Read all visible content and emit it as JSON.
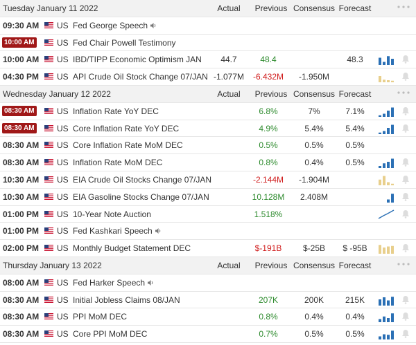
{
  "colors": {
    "up_bar": "#2b70b5",
    "down_bar": "#e8cf8c",
    "badge": "#a01818",
    "positive": "#2e8b2e",
    "negative": "#d01c1c",
    "bell": "#dddddd"
  },
  "columns": {
    "actual": "Actual",
    "previous": "Previous",
    "consensus": "Consensus",
    "forecast": "Forecast"
  },
  "days": [
    {
      "date": "Tuesday January 11 2022",
      "events": [
        {
          "time": "09:30 AM",
          "country": "US",
          "name": "Fed George Speech",
          "speech": true
        },
        {
          "time": "10:00 AM",
          "badge": true,
          "country": "US",
          "name": "Fed Chair Powell Testimony"
        },
        {
          "time": "10:00 AM",
          "country": "US",
          "name": "IBD/TIPP Economic Optimism JAN",
          "actual": "44.7",
          "previous": "48.4",
          "previous_color": "green",
          "forecast": "48.3",
          "chart": "up",
          "bars": [
            0.7,
            0.3,
            0.85,
            0.6
          ]
        },
        {
          "time": "04:30 PM",
          "country": "US",
          "name": "API Crude Oil Stock Change 07/JAN",
          "actual": "-1.077M",
          "previous": "-6.432M",
          "previous_color": "red",
          "consensus": "-1.950M",
          "chart": "down",
          "bars": [
            0.6,
            0.25,
            0.2,
            0.15
          ]
        }
      ]
    },
    {
      "date": "Wednesday January 12 2022",
      "events": [
        {
          "time": "08:30 AM",
          "badge": true,
          "country": "US",
          "name": "Inflation Rate YoY DEC",
          "previous": "6.8%",
          "previous_color": "green",
          "consensus": "7%",
          "forecast": "7.1%",
          "chart": "up",
          "bars": [
            0.15,
            0.3,
            0.6,
            0.9
          ]
        },
        {
          "time": "08:30 AM",
          "badge": true,
          "country": "US",
          "name": "Core Inflation Rate YoY DEC",
          "previous": "4.9%",
          "previous_color": "green",
          "consensus": "5.4%",
          "forecast": "5.4%",
          "chart": "up",
          "bars": [
            0.15,
            0.3,
            0.6,
            0.9
          ]
        },
        {
          "time": "08:30 AM",
          "country": "US",
          "name": "Core Inflation Rate MoM DEC",
          "previous": "0.5%",
          "previous_color": "green",
          "consensus": "0.5%",
          "forecast": "0.5%"
        },
        {
          "time": "08:30 AM",
          "country": "US",
          "name": "Inflation Rate MoM DEC",
          "previous": "0.8%",
          "previous_color": "green",
          "consensus": "0.4%",
          "forecast": "0.5%",
          "chart": "up",
          "bars": [
            0.2,
            0.45,
            0.6,
            0.9
          ]
        },
        {
          "time": "10:30 AM",
          "country": "US",
          "name": "EIA Crude Oil Stocks Change 07/JAN",
          "previous": "-2.144M",
          "previous_color": "red",
          "consensus": "-1.904M",
          "chart": "down",
          "bars": [
            0.55,
            0.9,
            0.3,
            0.15
          ]
        },
        {
          "time": "10:30 AM",
          "country": "US",
          "name": "EIA Gasoline Stocks Change 07/JAN",
          "previous": "10.128M",
          "previous_color": "green",
          "consensus": "2.408M",
          "chart": "up",
          "bars": [
            0,
            0,
            0.3,
            0.85
          ]
        },
        {
          "time": "01:00 PM",
          "country": "US",
          "name": "10-Year Note Auction",
          "previous": "1.518%",
          "previous_color": "green",
          "chart": "line"
        },
        {
          "time": "01:00 PM",
          "country": "US",
          "name": "Fed Kashkari Speech",
          "speech": true
        },
        {
          "time": "02:00 PM",
          "country": "US",
          "name": "Monthly Budget Statement DEC",
          "previous": "$-191B",
          "previous_color": "red",
          "consensus": "$-25B",
          "forecast": "$ -95B",
          "chart": "down",
          "bars": [
            0.85,
            0.6,
            0.7,
            0.75
          ]
        }
      ]
    },
    {
      "date": "Thursday January 13 2022",
      "events": [
        {
          "time": "08:00 AM",
          "country": "US",
          "name": "Fed Harker Speech",
          "speech": true
        },
        {
          "time": "08:30 AM",
          "country": "US",
          "name": "Initial Jobless Claims 08/JAN",
          "previous": "207K",
          "previous_color": "green",
          "consensus": "200K",
          "forecast": "215K",
          "chart": "up",
          "bars": [
            0.6,
            0.8,
            0.5,
            0.85
          ]
        },
        {
          "time": "08:30 AM",
          "country": "US",
          "name": "PPI MoM DEC",
          "previous": "0.8%",
          "previous_color": "green",
          "consensus": "0.4%",
          "forecast": "0.4%",
          "chart": "up",
          "bars": [
            0.3,
            0.55,
            0.4,
            0.85
          ]
        },
        {
          "time": "08:30 AM",
          "country": "US",
          "name": "Core PPI MoM DEC",
          "previous": "0.7%",
          "previous_color": "green",
          "consensus": "0.5%",
          "forecast": "0.5%",
          "chart": "up",
          "bars": [
            0.3,
            0.5,
            0.45,
            0.85
          ]
        }
      ]
    }
  ]
}
